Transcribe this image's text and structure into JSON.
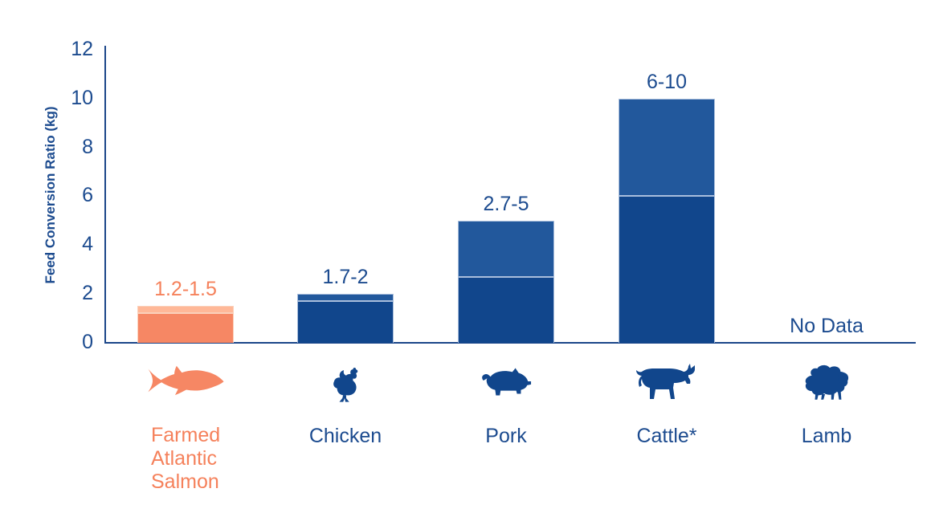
{
  "chart_data": {
    "type": "bar",
    "title": "",
    "ylabel": "Feed Conversion Ratio (kg)",
    "xlabel": "",
    "ylim": [
      0,
      12
    ],
    "yticks": [
      0,
      2,
      4,
      6,
      8,
      10,
      12
    ],
    "grid": false,
    "legend": false,
    "categories": [
      "Farmed Atlantic Salmon",
      "Chicken",
      "Pork",
      "Cattle*",
      "Lamb"
    ],
    "bars": [
      {
        "category": "Farmed Atlantic Salmon",
        "label_lines": [
          "Farmed",
          "Atlantic",
          "Salmon"
        ],
        "icon": "salmon-fish-icon",
        "range_low": 1.2,
        "range_high": 1.5,
        "value_label": "1.2-1.5",
        "scheme": "salmon"
      },
      {
        "category": "Chicken",
        "icon": "chicken-icon",
        "range_low": 1.7,
        "range_high": 2,
        "value_label": "1.7-2",
        "scheme": "blue"
      },
      {
        "category": "Pork",
        "icon": "pig-icon",
        "range_low": 2.7,
        "range_high": 5,
        "value_label": "2.7-5",
        "scheme": "blue"
      },
      {
        "category": "Cattle*",
        "icon": "cow-icon",
        "range_low": 6,
        "range_high": 10,
        "value_label": "6-10",
        "scheme": "blue"
      },
      {
        "category": "Lamb",
        "icon": "sheep-icon",
        "range_low": null,
        "range_high": null,
        "value_label": "No Data",
        "scheme": "blue"
      }
    ]
  },
  "colors": {
    "navy_text": "#1C4B8F",
    "axis": "#1B4689",
    "bar_dark_blue": "#11468C",
    "bar_light_blue": "#22589C",
    "bar_border_blue": "#A9BEDC",
    "salmon_dark": "#F68764",
    "salmon_light": "#FFB898",
    "salmon_border": "#FBD0BA",
    "salmon_text": "#F5815B"
  }
}
